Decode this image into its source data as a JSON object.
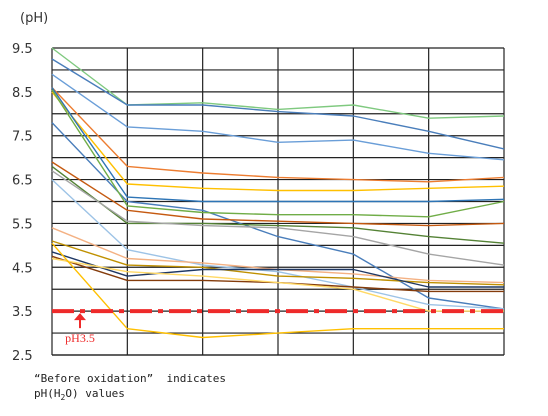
{
  "chart_data": {
    "type": "line",
    "title": "",
    "unit_label": "(pH)",
    "xlabel": "",
    "ylabel": "",
    "x": [
      0,
      1,
      2,
      3,
      4,
      5,
      6
    ],
    "ylim": [
      2.5,
      9.5
    ],
    "yticks": [
      "2.5",
      "3.5",
      "4.5",
      "5.5",
      "6.5",
      "7.5",
      "8.5",
      "9.5"
    ],
    "grid": true,
    "legend": "none",
    "reference_line": {
      "value": 3.5,
      "label": "pH3.5",
      "color": "#ee2a2a"
    },
    "note": {
      "line1": "“Before oxidation”  indicates",
      "line2_prefix": "pH(H",
      "line2_sub": "2",
      "line2_suffix": "O) values"
    },
    "series": [
      {
        "color": "#7fc97f",
        "values": [
          9.5,
          8.2,
          8.25,
          8.1,
          8.2,
          7.9,
          7.95
        ]
      },
      {
        "color": "#4a7ebb",
        "values": [
          9.25,
          8.2,
          8.2,
          8.05,
          7.95,
          7.6,
          7.2
        ]
      },
      {
        "color": "#6a9ed8",
        "values": [
          8.9,
          7.7,
          7.6,
          7.35,
          7.4,
          7.1,
          6.95
        ]
      },
      {
        "color": "#4a7ebb",
        "values": [
          7.8,
          6.0,
          5.8,
          5.2,
          4.8,
          3.8,
          3.55
        ]
      },
      {
        "color": "#ed7d31",
        "values": [
          8.6,
          6.8,
          6.65,
          6.55,
          6.5,
          6.45,
          6.55
        ]
      },
      {
        "color": "#ffc000",
        "values": [
          8.5,
          6.4,
          6.3,
          6.25,
          6.25,
          6.3,
          6.35
        ]
      },
      {
        "color": "#2e75b6",
        "values": [
          8.6,
          6.1,
          6.0,
          6.0,
          6.0,
          6.0,
          6.05
        ]
      },
      {
        "color": "#70ad47",
        "values": [
          8.55,
          5.9,
          5.75,
          5.7,
          5.7,
          5.65,
          6.0
        ]
      },
      {
        "color": "#548235",
        "values": [
          6.8,
          5.5,
          5.5,
          5.45,
          5.4,
          5.2,
          5.05
        ]
      },
      {
        "color": "#9dc3e6",
        "values": [
          6.5,
          4.9,
          4.55,
          4.4,
          4.05,
          3.65,
          3.55
        ]
      },
      {
        "color": "#c55a11",
        "values": [
          6.9,
          5.8,
          5.6,
          5.55,
          5.5,
          5.45,
          5.5
        ]
      },
      {
        "color": "#a5a5a5",
        "values": [
          6.7,
          5.55,
          5.45,
          5.4,
          5.2,
          4.8,
          4.55
        ]
      },
      {
        "color": "#f4b183",
        "values": [
          5.4,
          4.7,
          4.6,
          4.45,
          4.35,
          4.2,
          4.15
        ]
      },
      {
        "color": "#bf9000",
        "values": [
          5.1,
          4.55,
          4.5,
          4.3,
          4.25,
          4.15,
          4.1
        ]
      },
      {
        "color": "#1f3864",
        "values": [
          4.85,
          4.3,
          4.45,
          4.45,
          4.45,
          4.05,
          4.05
        ]
      },
      {
        "color": "#843c0c",
        "values": [
          4.75,
          4.2,
          4.2,
          4.15,
          4.05,
          3.95,
          3.95
        ]
      },
      {
        "color": "#ffd966",
        "values": [
          4.7,
          4.4,
          4.3,
          4.15,
          4.0,
          3.5,
          3.5
        ]
      },
      {
        "color": "#ffc000",
        "values": [
          5.05,
          3.1,
          2.9,
          3.0,
          3.1,
          3.1,
          3.1
        ]
      }
    ]
  }
}
